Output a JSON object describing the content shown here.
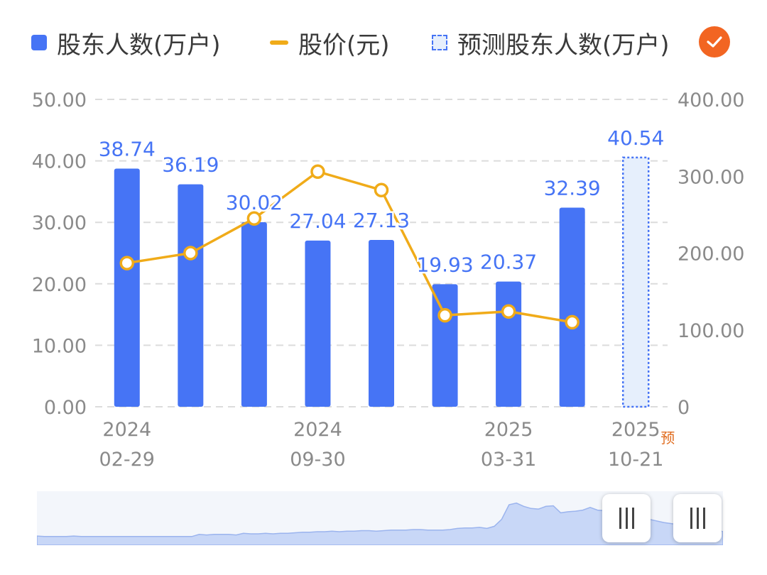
{
  "legend": {
    "bar_label": "股东人数(万户)",
    "line_label": "股价(元)",
    "forecast_label": "预测股东人数(万户)"
  },
  "forecast_tag": "预",
  "colors": {
    "bar": "#4674f5",
    "line": "#f0ab19",
    "forecast_fill": "#e6effc",
    "value_label": "#4674f5",
    "check": "#f26522"
  },
  "chart_data": {
    "type": "bar",
    "categories": [
      "2024-02-29",
      "",
      "",
      "2024-09-30",
      "",
      "",
      "2025-03-31",
      "",
      "2025-10-21"
    ],
    "x_tick_labels": [
      {
        "index": 0,
        "year": "2024",
        "date": "02-29"
      },
      {
        "index": 3,
        "year": "2024",
        "date": "09-30"
      },
      {
        "index": 6,
        "year": "2025",
        "date": "03-31"
      },
      {
        "index": 8,
        "year": "2025",
        "date": "10-21"
      }
    ],
    "series": [
      {
        "name": "股东人数(万户)",
        "type": "bar",
        "axis": "left",
        "values": [
          38.74,
          36.19,
          30.02,
          27.04,
          27.13,
          19.93,
          20.37,
          32.39,
          null
        ],
        "labels": [
          "38.74",
          "36.19",
          "30.02",
          "27.04",
          "27.13",
          "19.93",
          "20.37",
          "32.39",
          ""
        ]
      },
      {
        "name": "预测股东人数(万户)",
        "type": "bar",
        "axis": "left",
        "forecast": true,
        "values": [
          null,
          null,
          null,
          null,
          null,
          null,
          null,
          null,
          40.54
        ],
        "labels": [
          "",
          "",
          "",
          "",
          "",
          "",
          "",
          "",
          "40.54"
        ]
      },
      {
        "name": "股价(元)",
        "type": "line",
        "axis": "right",
        "values": [
          187,
          200,
          245,
          306,
          282,
          119,
          124,
          110,
          null
        ]
      }
    ],
    "y_left": {
      "ticks": [
        "0.00",
        "10.00",
        "20.00",
        "30.00",
        "40.00",
        "50.00"
      ],
      "lim": [
        0,
        50
      ]
    },
    "y_right": {
      "ticks": [
        "0",
        "100.00",
        "200.00",
        "300.00",
        "400.00"
      ],
      "lim": [
        0,
        400
      ]
    },
    "grid": true,
    "legend_position": "top"
  },
  "slider": {
    "profile": [
      0.17,
      0.16,
      0.16,
      0.16,
      0.16,
      0.17,
      0.16,
      0.16,
      0.16,
      0.16,
      0.16,
      0.16,
      0.16,
      0.16,
      0.16,
      0.16,
      0.16,
      0.16,
      0.16,
      0.16,
      0.16,
      0.16,
      0.2,
      0.19,
      0.2,
      0.2,
      0.2,
      0.19,
      0.22,
      0.21,
      0.21,
      0.22,
      0.21,
      0.22,
      0.22,
      0.23,
      0.24,
      0.24,
      0.25,
      0.25,
      0.26,
      0.25,
      0.26,
      0.26,
      0.27,
      0.27,
      0.26,
      0.27,
      0.28,
      0.28,
      0.28,
      0.29,
      0.29,
      0.28,
      0.28,
      0.28,
      0.29,
      0.31,
      0.32,
      0.32,
      0.33,
      0.31,
      0.35,
      0.48,
      0.75,
      0.78,
      0.72,
      0.68,
      0.67,
      0.72,
      0.73,
      0.6,
      0.62,
      0.63,
      0.65,
      0.7,
      0.65,
      0.64,
      0.66,
      0.6,
      0.56,
      0.52,
      0.5,
      0.48,
      0.45,
      0.42,
      0.4,
      0.38,
      0.36,
      0.34,
      0.33,
      0.31,
      0.3,
      0.25
    ]
  }
}
